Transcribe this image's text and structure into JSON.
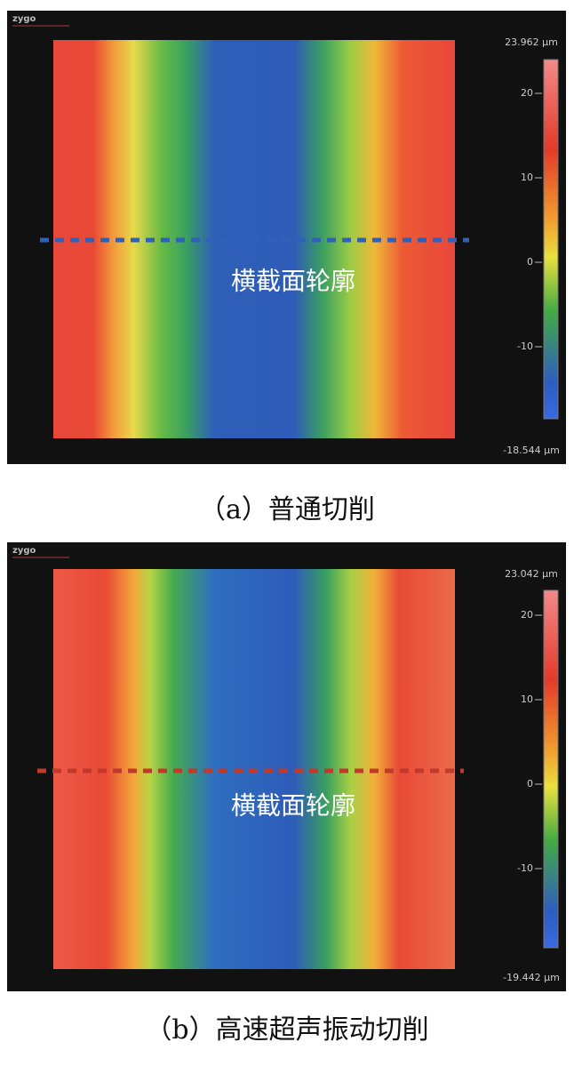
{
  "panels": [
    {
      "logo": "zygo",
      "max_label": "23.962 µm",
      "min_label": "-18.544 µm",
      "ticks": [
        20,
        10,
        0,
        -10
      ],
      "profile_label": "横截面轮廓",
      "caption": "（a）普通切削"
    },
    {
      "logo": "zygo",
      "max_label": "23.042 µm",
      "min_label": "-19.442 µm",
      "ticks": [
        20,
        10,
        0,
        -10
      ],
      "profile_label": "横截面轮廓",
      "caption": "（b）高速超声振动切削"
    }
  ]
}
